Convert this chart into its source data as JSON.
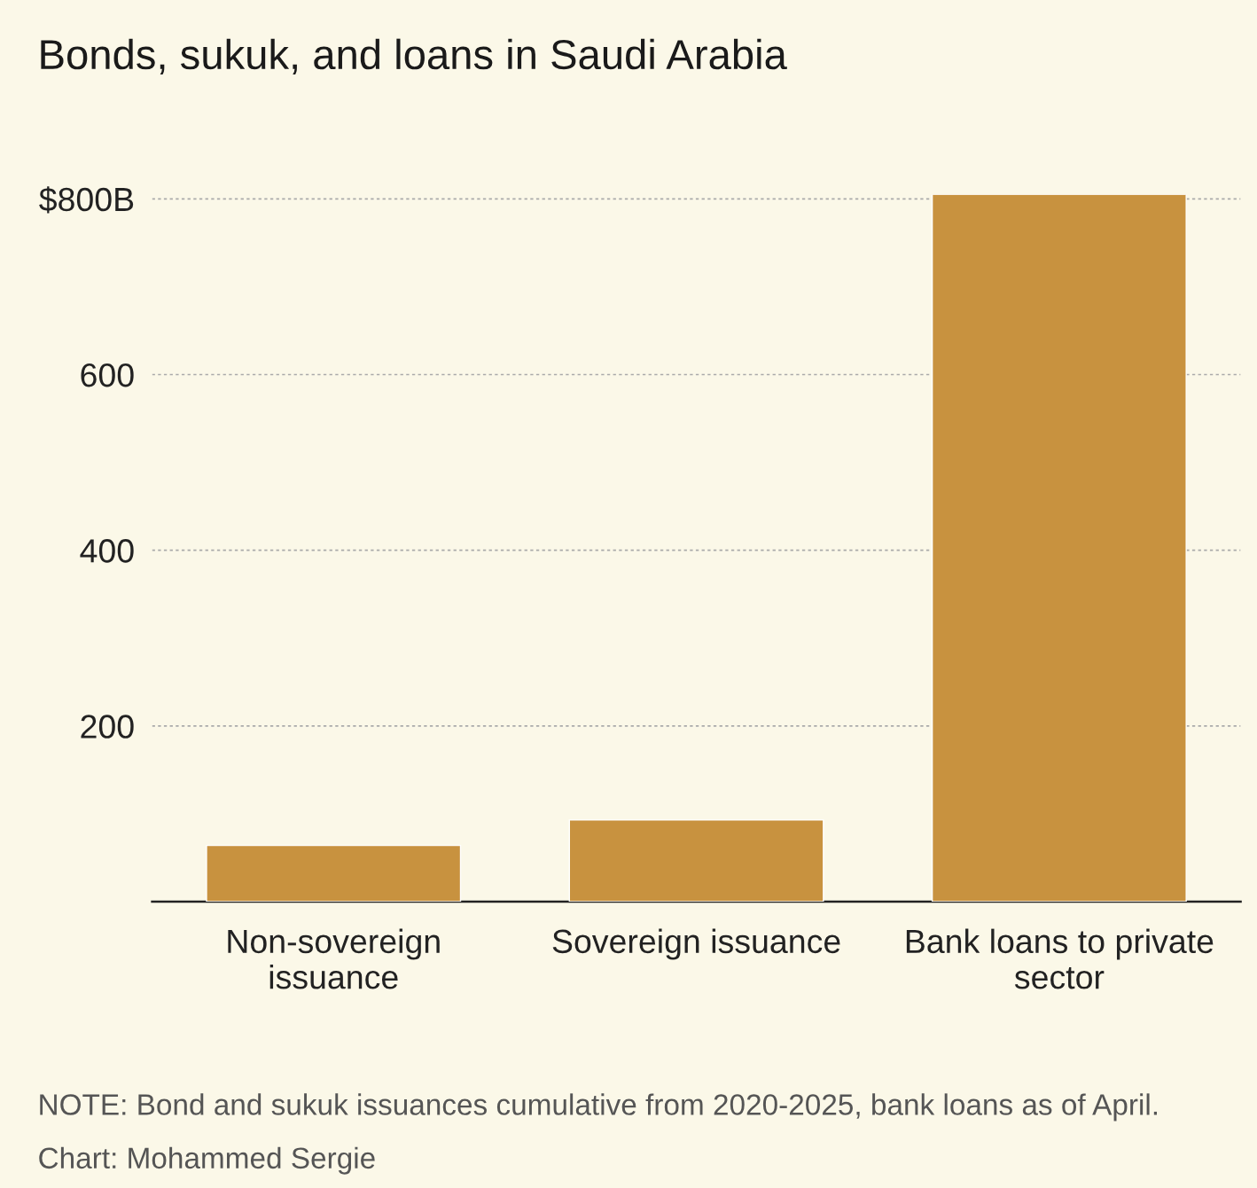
{
  "chart_data": {
    "type": "bar",
    "title": "Bonds, sukuk, and loans in Saudi Arabia",
    "categories": [
      "Non-sovereign\nissuance",
      "Sovereign issuance",
      "Bank loans to private\nsector"
    ],
    "values": [
      64,
      93,
      805
    ],
    "color": "#c8923f",
    "ylim": [
      0,
      805
    ],
    "yticks": [
      200,
      400,
      600,
      {
        "value": 800,
        "label": "$800B"
      }
    ],
    "grid": "y",
    "annotations": [
      "NOTE: Bond and sukuk issuances cumulative from 2020-2025, bank loans as of April.",
      "Chart: Mohammed Sergie"
    ]
  }
}
